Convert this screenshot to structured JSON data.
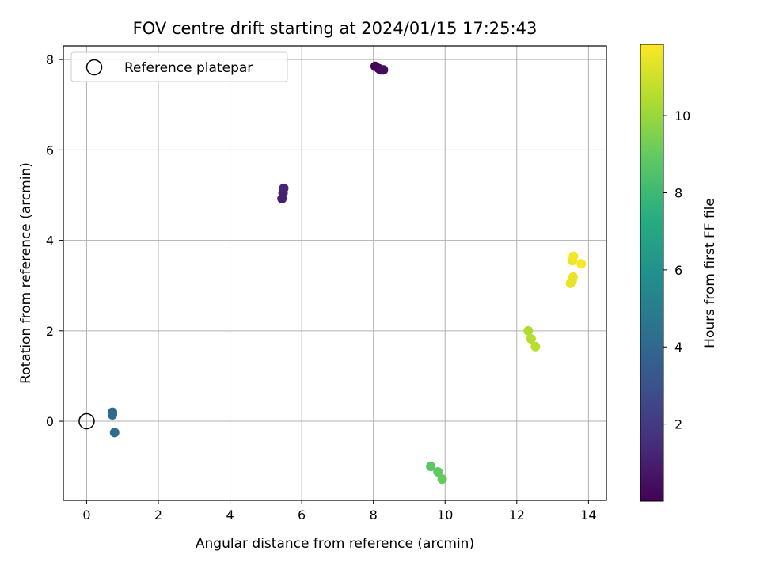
{
  "chart_data": {
    "type": "scatter",
    "title": "FOV centre drift starting at 2024/01/15 17:25:43",
    "xlabel": "Angular distance from reference (arcmin)",
    "ylabel": "Rotation from reference (arcmin)",
    "xlim": [
      -0.65,
      14.5
    ],
    "ylim": [
      -1.75,
      8.3
    ],
    "xticks": [
      0,
      2,
      4,
      6,
      8,
      10,
      12,
      14
    ],
    "yticks": [
      0,
      2,
      4,
      6,
      8
    ],
    "grid": true,
    "legend": {
      "placement": "upper-left",
      "entries": [
        {
          "label": "Reference platepar",
          "marker": "hollow-circle"
        }
      ]
    },
    "reference_point": {
      "x": 0,
      "y": 0
    },
    "colorbar": {
      "label": "Hours from first FF file",
      "range": [
        0,
        11.85
      ],
      "ticks": [
        2,
        4,
        6,
        8,
        10
      ],
      "colormap": "viridis"
    },
    "points": [
      {
        "x": 8.05,
        "y": 7.85,
        "hours": 0.05
      },
      {
        "x": 8.15,
        "y": 7.8,
        "hours": 0.15
      },
      {
        "x": 8.2,
        "y": 7.77,
        "hours": 0.25
      },
      {
        "x": 8.28,
        "y": 7.77,
        "hours": 0.35
      },
      {
        "x": 5.45,
        "y": 4.92,
        "hours": 1.0
      },
      {
        "x": 5.48,
        "y": 5.05,
        "hours": 1.1
      },
      {
        "x": 5.5,
        "y": 5.15,
        "hours": 1.2
      },
      {
        "x": 0.72,
        "y": 0.2,
        "hours": 4.0
      },
      {
        "x": 0.72,
        "y": 0.14,
        "hours": 4.1
      },
      {
        "x": 0.78,
        "y": -0.25,
        "hours": 4.2
      },
      {
        "x": 9.6,
        "y": -1.0,
        "hours": 8.8
      },
      {
        "x": 9.8,
        "y": -1.12,
        "hours": 8.9
      },
      {
        "x": 9.92,
        "y": -1.28,
        "hours": 9.0
      },
      {
        "x": 12.32,
        "y": 2.0,
        "hours": 10.4
      },
      {
        "x": 12.4,
        "y": 1.82,
        "hours": 10.5
      },
      {
        "x": 12.52,
        "y": 1.65,
        "hours": 10.6
      },
      {
        "x": 13.5,
        "y": 3.05,
        "hours": 11.4
      },
      {
        "x": 13.55,
        "y": 3.12,
        "hours": 11.45
      },
      {
        "x": 13.57,
        "y": 3.19,
        "hours": 11.5
      },
      {
        "x": 13.55,
        "y": 3.55,
        "hours": 11.6
      },
      {
        "x": 13.58,
        "y": 3.65,
        "hours": 11.7
      },
      {
        "x": 13.8,
        "y": 3.48,
        "hours": 11.8
      }
    ]
  }
}
